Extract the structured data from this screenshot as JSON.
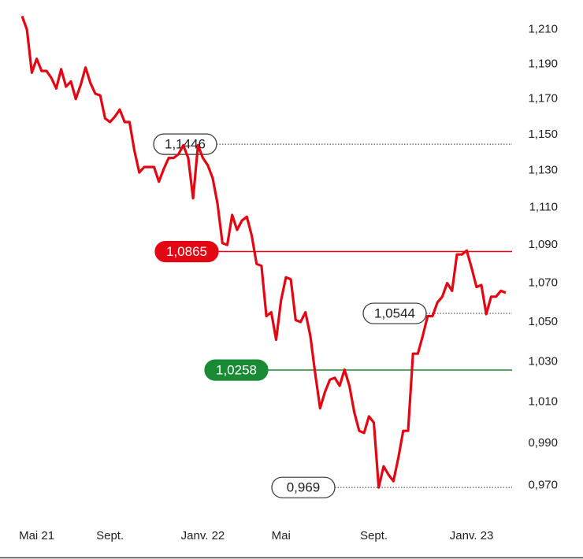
{
  "chart_data": {
    "type": "line",
    "log_scale": true,
    "grid": false,
    "categories": [
      null,
      null,
      null,
      "Mai 21",
      null,
      null,
      null,
      null,
      null,
      null,
      null,
      null,
      null,
      null,
      null,
      null,
      null,
      null,
      "Sept.",
      null,
      null,
      null,
      null,
      null,
      null,
      null,
      null,
      null,
      null,
      null,
      null,
      null,
      null,
      null,
      null,
      null,
      null,
      "Janv. 22",
      null,
      null,
      null,
      null,
      null,
      null,
      null,
      null,
      null,
      null,
      null,
      null,
      null,
      null,
      null,
      "Mai",
      null,
      null,
      null,
      null,
      null,
      null,
      null,
      null,
      null,
      null,
      null,
      null,
      null,
      null,
      null,
      null,
      null,
      null,
      "Sept.",
      null,
      null,
      null,
      null,
      null,
      null,
      null,
      null,
      null,
      null,
      null,
      null,
      null,
      null,
      null,
      null,
      null,
      null,
      null,
      "Janv. 23",
      null,
      null,
      null,
      null,
      null,
      null,
      null
    ],
    "series": [
      {
        "color": "#e30613",
        "values": [
          1.218,
          1.21,
          1.185,
          1.193,
          1.186,
          1.186,
          1.182,
          1.176,
          1.187,
          1.177,
          1.18,
          1.17,
          1.178,
          1.188,
          1.179,
          1.173,
          1.172,
          1.159,
          1.157,
          1.16,
          1.164,
          1.157,
          1.157,
          1.141,
          1.129,
          1.132,
          1.132,
          1.132,
          1.124,
          1.131,
          1.137,
          1.137,
          1.139,
          1.144,
          1.137,
          1.115,
          1.144,
          1.137,
          1.133,
          1.126,
          1.112,
          1.091,
          1.09,
          1.106,
          1.098,
          1.103,
          1.105,
          1.095,
          1.08,
          1.079,
          1.053,
          1.055,
          1.041,
          1.061,
          1.073,
          1.072,
          1.051,
          1.05,
          1.055,
          1.043,
          1.024,
          1.007,
          1.015,
          1.021,
          1.022,
          1.018,
          1.026,
          1.018,
          1.005,
          0.996,
          0.995,
          1.003,
          1.0,
          0.969,
          0.979,
          0.975,
          0.972,
          0.983,
          0.996,
          0.996,
          1.034,
          1.034,
          1.043,
          1.053,
          1.053,
          1.06,
          1.063,
          1.07,
          1.066,
          1.085,
          1.085,
          1.087,
          1.078,
          1.068,
          1.069,
          1.054,
          1.063,
          1.063,
          1.066,
          1.065
        ]
      }
    ],
    "reference_lines": [
      {
        "value": 1.1446,
        "label": "1,1446",
        "color": "#333333",
        "style": "dotted"
      },
      {
        "value": 1.0865,
        "label": "1,0865",
        "color": "#e30613",
        "style": "solid"
      },
      {
        "value": 1.0544,
        "label": "1,0544",
        "color": "#333333",
        "style": "dotted"
      },
      {
        "value": 1.0258,
        "label": "1,0258",
        "color": "#1a8a34",
        "style": "solid"
      },
      {
        "value": 0.969,
        "label": "0,969",
        "color": "#333333",
        "style": "dotted"
      }
    ],
    "ylim": [
      0.965,
      1.221
    ],
    "yticks": [
      {
        "value": 1.21,
        "label": "1,210"
      },
      {
        "value": 1.19,
        "label": "1,190"
      },
      {
        "value": 1.17,
        "label": "1,170"
      },
      {
        "value": 1.15,
        "label": "1,150"
      },
      {
        "value": 1.13,
        "label": "1,130"
      },
      {
        "value": 1.11,
        "label": "1,110"
      },
      {
        "value": 1.09,
        "label": "1,090"
      },
      {
        "value": 1.07,
        "label": "1,070"
      },
      {
        "value": 1.05,
        "label": "1,050"
      },
      {
        "value": 1.03,
        "label": "1,030"
      },
      {
        "value": 1.01,
        "label": "1,010"
      },
      {
        "value": 0.99,
        "label": "0,990"
      },
      {
        "value": 0.97,
        "label": "0,970"
      }
    ]
  }
}
